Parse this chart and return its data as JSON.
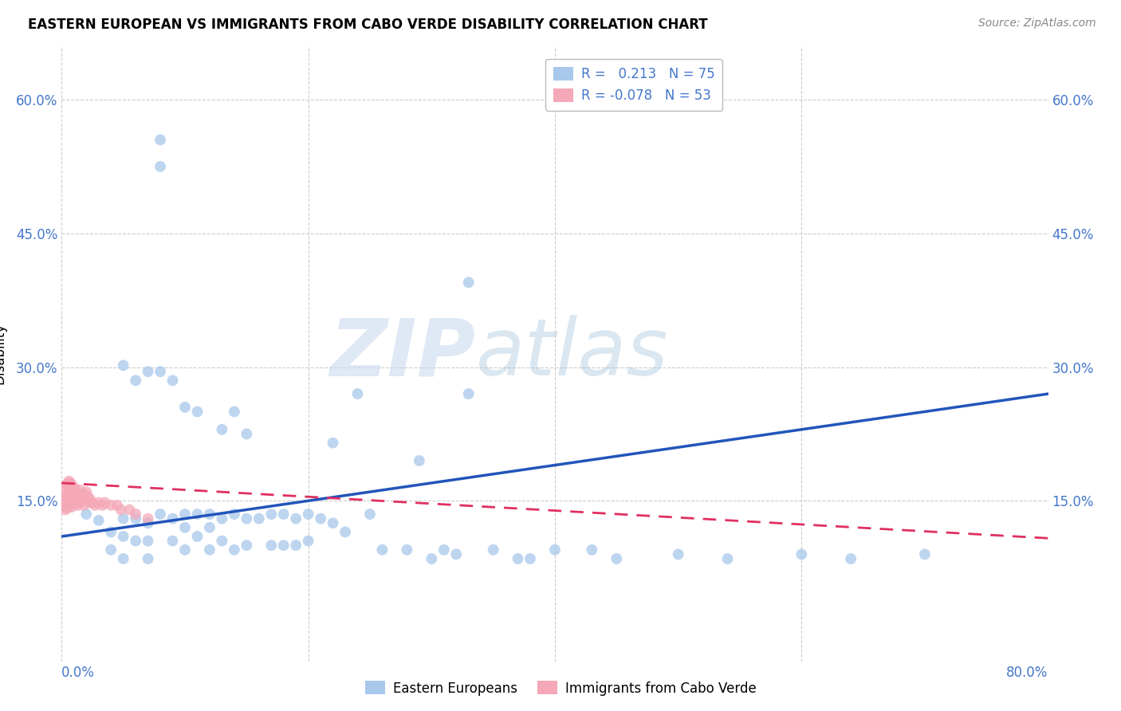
{
  "title": "EASTERN EUROPEAN VS IMMIGRANTS FROM CABO VERDE DISABILITY CORRELATION CHART",
  "source": "Source: ZipAtlas.com",
  "ylabel": "Disability",
  "blue_color": "#A8C8EC",
  "pink_color": "#F4A8B8",
  "blue_line_color": "#2255BB",
  "pink_line_color": "#E03060",
  "watermark_zip": "ZIP",
  "watermark_atlas": "atlas",
  "blue_x": [
    0.02,
    0.03,
    0.04,
    0.04,
    0.05,
    0.05,
    0.05,
    0.06,
    0.06,
    0.07,
    0.07,
    0.07,
    0.08,
    0.08,
    0.09,
    0.09,
    0.1,
    0.1,
    0.1,
    0.11,
    0.11,
    0.12,
    0.12,
    0.12,
    0.13,
    0.13,
    0.14,
    0.14,
    0.15,
    0.15,
    0.16,
    0.17,
    0.17,
    0.18,
    0.18,
    0.19,
    0.19,
    0.2,
    0.2,
    0.21,
    0.22,
    0.23,
    0.24,
    0.25,
    0.26,
    0.28,
    0.3,
    0.31,
    0.32,
    0.33,
    0.35,
    0.37,
    0.38,
    0.4,
    0.43,
    0.45,
    0.5,
    0.54,
    0.6,
    0.64,
    0.7,
    0.05,
    0.06,
    0.07,
    0.08,
    0.08,
    0.09,
    0.1,
    0.11,
    0.13,
    0.14,
    0.15,
    0.22,
    0.29,
    0.33
  ],
  "blue_y": [
    0.135,
    0.128,
    0.115,
    0.095,
    0.13,
    0.11,
    0.085,
    0.13,
    0.105,
    0.125,
    0.105,
    0.085,
    0.555,
    0.135,
    0.13,
    0.105,
    0.135,
    0.12,
    0.095,
    0.135,
    0.11,
    0.135,
    0.12,
    0.095,
    0.13,
    0.105,
    0.135,
    0.095,
    0.13,
    0.1,
    0.13,
    0.135,
    0.1,
    0.135,
    0.1,
    0.13,
    0.1,
    0.135,
    0.105,
    0.13,
    0.125,
    0.115,
    0.27,
    0.135,
    0.095,
    0.095,
    0.085,
    0.095,
    0.09,
    0.395,
    0.095,
    0.085,
    0.085,
    0.095,
    0.095,
    0.085,
    0.09,
    0.085,
    0.09,
    0.085,
    0.09,
    0.302,
    0.285,
    0.295,
    0.525,
    0.295,
    0.285,
    0.255,
    0.25,
    0.23,
    0.25,
    0.225,
    0.215,
    0.195,
    0.27
  ],
  "pink_x": [
    0.002,
    0.002,
    0.003,
    0.003,
    0.003,
    0.004,
    0.004,
    0.004,
    0.005,
    0.005,
    0.005,
    0.006,
    0.006,
    0.006,
    0.007,
    0.007,
    0.007,
    0.008,
    0.008,
    0.008,
    0.009,
    0.009,
    0.01,
    0.01,
    0.011,
    0.011,
    0.012,
    0.012,
    0.013,
    0.013,
    0.014,
    0.015,
    0.015,
    0.016,
    0.017,
    0.018,
    0.018,
    0.019,
    0.02,
    0.021,
    0.022,
    0.023,
    0.025,
    0.027,
    0.03,
    0.033,
    0.035,
    0.04,
    0.045,
    0.048,
    0.055,
    0.06,
    0.07
  ],
  "pink_y": [
    0.155,
    0.145,
    0.165,
    0.15,
    0.14,
    0.168,
    0.155,
    0.142,
    0.17,
    0.158,
    0.145,
    0.172,
    0.16,
    0.148,
    0.17,
    0.158,
    0.145,
    0.168,
    0.156,
    0.143,
    0.165,
    0.152,
    0.165,
    0.15,
    0.162,
    0.15,
    0.16,
    0.148,
    0.158,
    0.145,
    0.155,
    0.162,
    0.148,
    0.155,
    0.152,
    0.158,
    0.145,
    0.153,
    0.16,
    0.155,
    0.148,
    0.152,
    0.148,
    0.145,
    0.148,
    0.145,
    0.148,
    0.145,
    0.145,
    0.14,
    0.14,
    0.135,
    0.13
  ],
  "blue_trend_x": [
    0.0,
    0.8
  ],
  "blue_trend_y": [
    0.11,
    0.27
  ],
  "pink_trend_x": [
    0.0,
    0.8
  ],
  "pink_trend_y": [
    0.17,
    0.108
  ],
  "xlim": [
    0.0,
    0.8
  ],
  "ylim": [
    -0.03,
    0.66
  ],
  "ytick_positions": [
    0.0,
    0.15,
    0.3,
    0.45,
    0.6
  ],
  "ytick_labels": [
    "",
    "15.0%",
    "30.0%",
    "45.0%",
    "60.0%"
  ],
  "xtick_left_label": "0.0%",
  "xtick_right_label": "80.0%",
  "legend_label1": "R =   0.213   N = 75",
  "legend_label2": "R = -0.078   N = 53",
  "bottom_label1": "Eastern Europeans",
  "bottom_label2": "Immigrants from Cabo Verde",
  "tick_color": "#4477CC",
  "grid_color": "#CCCCCC"
}
